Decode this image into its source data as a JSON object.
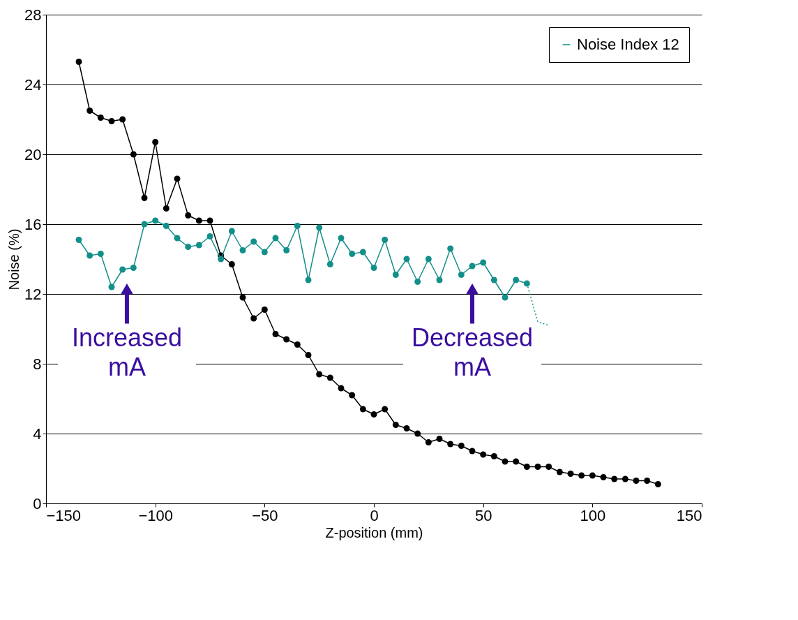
{
  "chart_data": {
    "type": "line",
    "xlabel": "Z-position (mm)",
    "ylabel": "Noise (%)",
    "xlim": [
      -150,
      150
    ],
    "xticks": [
      -150,
      -100,
      -50,
      0,
      50,
      100,
      150
    ],
    "ylim": [
      0,
      28
    ],
    "yticks": [
      0,
      4,
      8,
      12,
      16,
      20,
      24,
      28
    ],
    "grid": "y",
    "legend": "top right",
    "marker": "circle",
    "line_style": "solid",
    "series": [
      {
        "color": "#000000",
        "x": [
          -135,
          -130,
          -125,
          -120,
          -115,
          -110,
          -105,
          -100,
          -95,
          -90,
          -85,
          -80,
          -75,
          -70,
          -65,
          -60,
          -55,
          -50,
          -45,
          -40,
          -35,
          -30,
          -25,
          -20,
          -15,
          -10,
          -5,
          0,
          5,
          10,
          15,
          20,
          25,
          30,
          35,
          40,
          45,
          50,
          55,
          60,
          65,
          70,
          75,
          80,
          85,
          90,
          95,
          100,
          105,
          110,
          115,
          120,
          125,
          130
        ],
        "values": [
          25.3,
          22.5,
          22.1,
          21.9,
          22.0,
          20.0,
          17.5,
          20.7,
          16.9,
          18.6,
          16.5,
          16.2,
          16.2,
          14.2,
          13.7,
          11.8,
          10.6,
          11.1,
          9.7,
          9.4,
          9.1,
          8.5,
          7.4,
          7.2,
          6.6,
          6.2,
          5.4,
          5.1,
          5.4,
          4.5,
          4.3,
          4.0,
          3.5,
          3.7,
          3.4,
          3.3,
          3.0,
          2.8,
          2.7,
          2.4,
          2.4,
          2.1,
          2.1,
          2.1,
          1.8,
          1.7,
          1.6,
          1.6,
          1.5,
          1.4,
          1.4,
          1.3,
          1.3,
          1.1
        ]
      },
      {
        "name": "Noise Index 12",
        "color": "#138f8a",
        "x": [
          -135,
          -130,
          -125,
          -120,
          -115,
          -110,
          -105,
          -100,
          -95,
          -90,
          -85,
          -80,
          -75,
          -70,
          -65,
          -60,
          -55,
          -50,
          -45,
          -40,
          -35,
          -30,
          -25,
          -20,
          -15,
          -10,
          -5,
          0,
          5,
          10,
          15,
          20,
          25,
          30,
          35,
          40,
          45,
          50,
          55,
          60,
          65,
          70
        ],
        "values": [
          15.1,
          14.2,
          14.3,
          12.4,
          13.4,
          13.5,
          16.0,
          16.2,
          15.9,
          15.2,
          14.7,
          14.8,
          15.3,
          14.0,
          15.6,
          14.5,
          15.0,
          14.4,
          15.2,
          14.5,
          15.9,
          12.8,
          15.8,
          13.7,
          15.2,
          14.3,
          14.4,
          13.5,
          15.1,
          13.1,
          14.0,
          12.7,
          14.0,
          12.8,
          14.6,
          13.1,
          13.6,
          13.8,
          12.8,
          11.8,
          12.8,
          12.6
        ]
      },
      {
        "color": "#138f8a",
        "marker": "none",
        "line_style": "dotted",
        "x": [
          70,
          75,
          80
        ],
        "values": [
          12.6,
          10.4,
          10.2
        ]
      }
    ],
    "annotations": [
      {
        "text": "Increased mA",
        "x": -113,
        "y": 12.3
      },
      {
        "text": "Decreased mA",
        "x": 45,
        "y": 12.3
      }
    ]
  }
}
